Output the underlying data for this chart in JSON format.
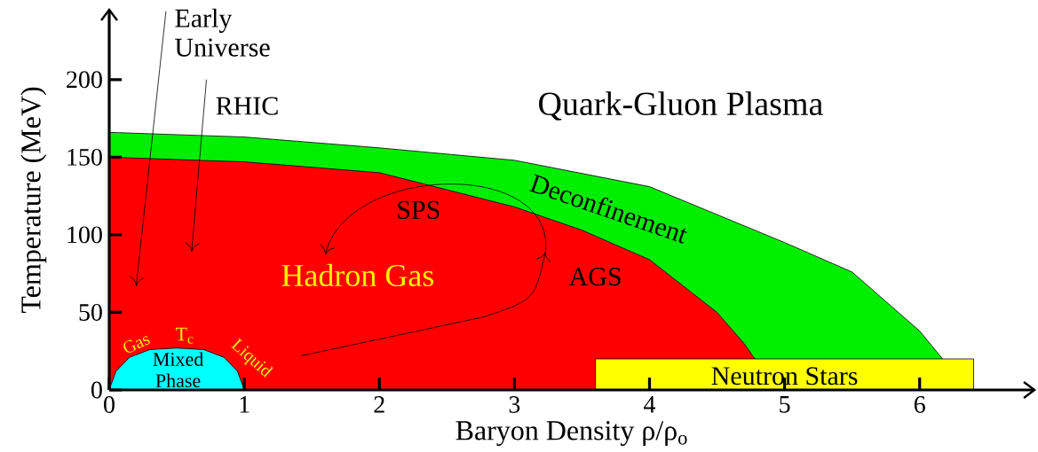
{
  "chart_data": {
    "type": "area",
    "xlabel": "Baryon Density ρ/ρ$_{o}$",
    "ylabel": "Temperature (MeV)",
    "xlim": [
      0,
      6.85
    ],
    "ylim": [
      0,
      245
    ],
    "xticks": [
      0,
      1,
      2,
      3,
      4,
      5,
      6
    ],
    "yticks": [
      0,
      50,
      100,
      150,
      200
    ],
    "marker": "none",
    "series": [
      {
        "name": "Deconfinement",
        "color": "#00ee00",
        "x": [
          0,
          1,
          2,
          3,
          4,
          5,
          5.5,
          6,
          6.17
        ],
        "values": [
          166,
          163,
          156,
          148,
          131,
          95,
          76,
          38,
          20
        ]
      },
      {
        "name": "Hadron Gas",
        "color": "#ff0000",
        "x": [
          0,
          1,
          2,
          3,
          3.5,
          4,
          4.5,
          4.7,
          4.78
        ],
        "values": [
          150,
          147,
          140,
          118,
          103,
          84,
          50,
          30,
          20
        ]
      },
      {
        "name": "Mixed Phase",
        "color": "#00ffff",
        "x": [
          0,
          0.05,
          0.15,
          0.3,
          0.5,
          0.7,
          0.85,
          0.95,
          1
        ],
        "values": [
          0,
          12,
          21,
          26,
          27,
          26,
          21,
          12,
          0
        ]
      },
      {
        "name": "Neutron Stars",
        "color": "#ffff00",
        "x": [
          3.6,
          6.4
        ],
        "values": [
          20,
          20
        ]
      }
    ],
    "annotations": [
      "Quark-Gluon Plasma",
      "Early Universe",
      "RHIC",
      "SPS",
      "AGS",
      "Gas",
      "T$_{c}$",
      "Liquid"
    ]
  }
}
